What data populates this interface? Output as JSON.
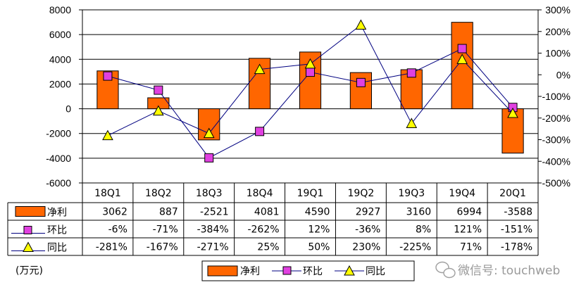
{
  "chart_data": {
    "type": "bar",
    "categories": [
      "18Q1",
      "18Q2",
      "18Q3",
      "18Q4",
      "19Q1",
      "19Q2",
      "19Q3",
      "19Q4",
      "20Q1"
    ],
    "series": [
      {
        "name": "净利",
        "type": "bar",
        "axis": "left",
        "values": [
          3062,
          887,
          -2521,
          4081,
          4590,
          2927,
          3160,
          6994,
          -3588
        ],
        "labels": [
          "3062",
          "887",
          "-2521",
          "4081",
          "4590",
          "2927",
          "3160",
          "6994",
          "-3588"
        ],
        "color": "#ff6600"
      },
      {
        "name": "环比",
        "type": "line",
        "axis": "right",
        "values": [
          -6,
          -71,
          -384,
          -262,
          12,
          -36,
          8,
          121,
          -151
        ],
        "labels": [
          "-6%",
          "-71%",
          "-384%",
          "-262%",
          "12%",
          "-36%",
          "8%",
          "121%",
          "-151%"
        ],
        "color": "#000080",
        "marker": "square",
        "marker_color": "#e040e0"
      },
      {
        "name": "同比",
        "type": "line",
        "axis": "right",
        "values": [
          -281,
          -167,
          -271,
          25,
          50,
          230,
          -225,
          71,
          -178
        ],
        "labels": [
          "-281%",
          "-167%",
          "-271%",
          "25%",
          "50%",
          "230%",
          "-225%",
          "71%",
          "-178%"
        ],
        "color": "#000080",
        "marker": "triangle",
        "marker_color": "#ffff00"
      }
    ],
    "yleft": {
      "range": [
        -6000,
        8000
      ],
      "ticks": [
        "8000",
        "6000",
        "4000",
        "2000",
        "0",
        "-2000",
        "-4000",
        "-6000"
      ]
    },
    "yright": {
      "range": [
        -500,
        300
      ],
      "ticks": [
        "300%",
        "200%",
        "100%",
        "0%",
        "-100%",
        "-200%",
        "-300%",
        "-400%",
        "-500%"
      ]
    },
    "grid": true,
    "data_table": true,
    "legend_position": "bottom",
    "unit_label": "(万元)"
  },
  "watermark": {
    "icon": "wechat-icon",
    "text": "微信号: touchweb"
  }
}
